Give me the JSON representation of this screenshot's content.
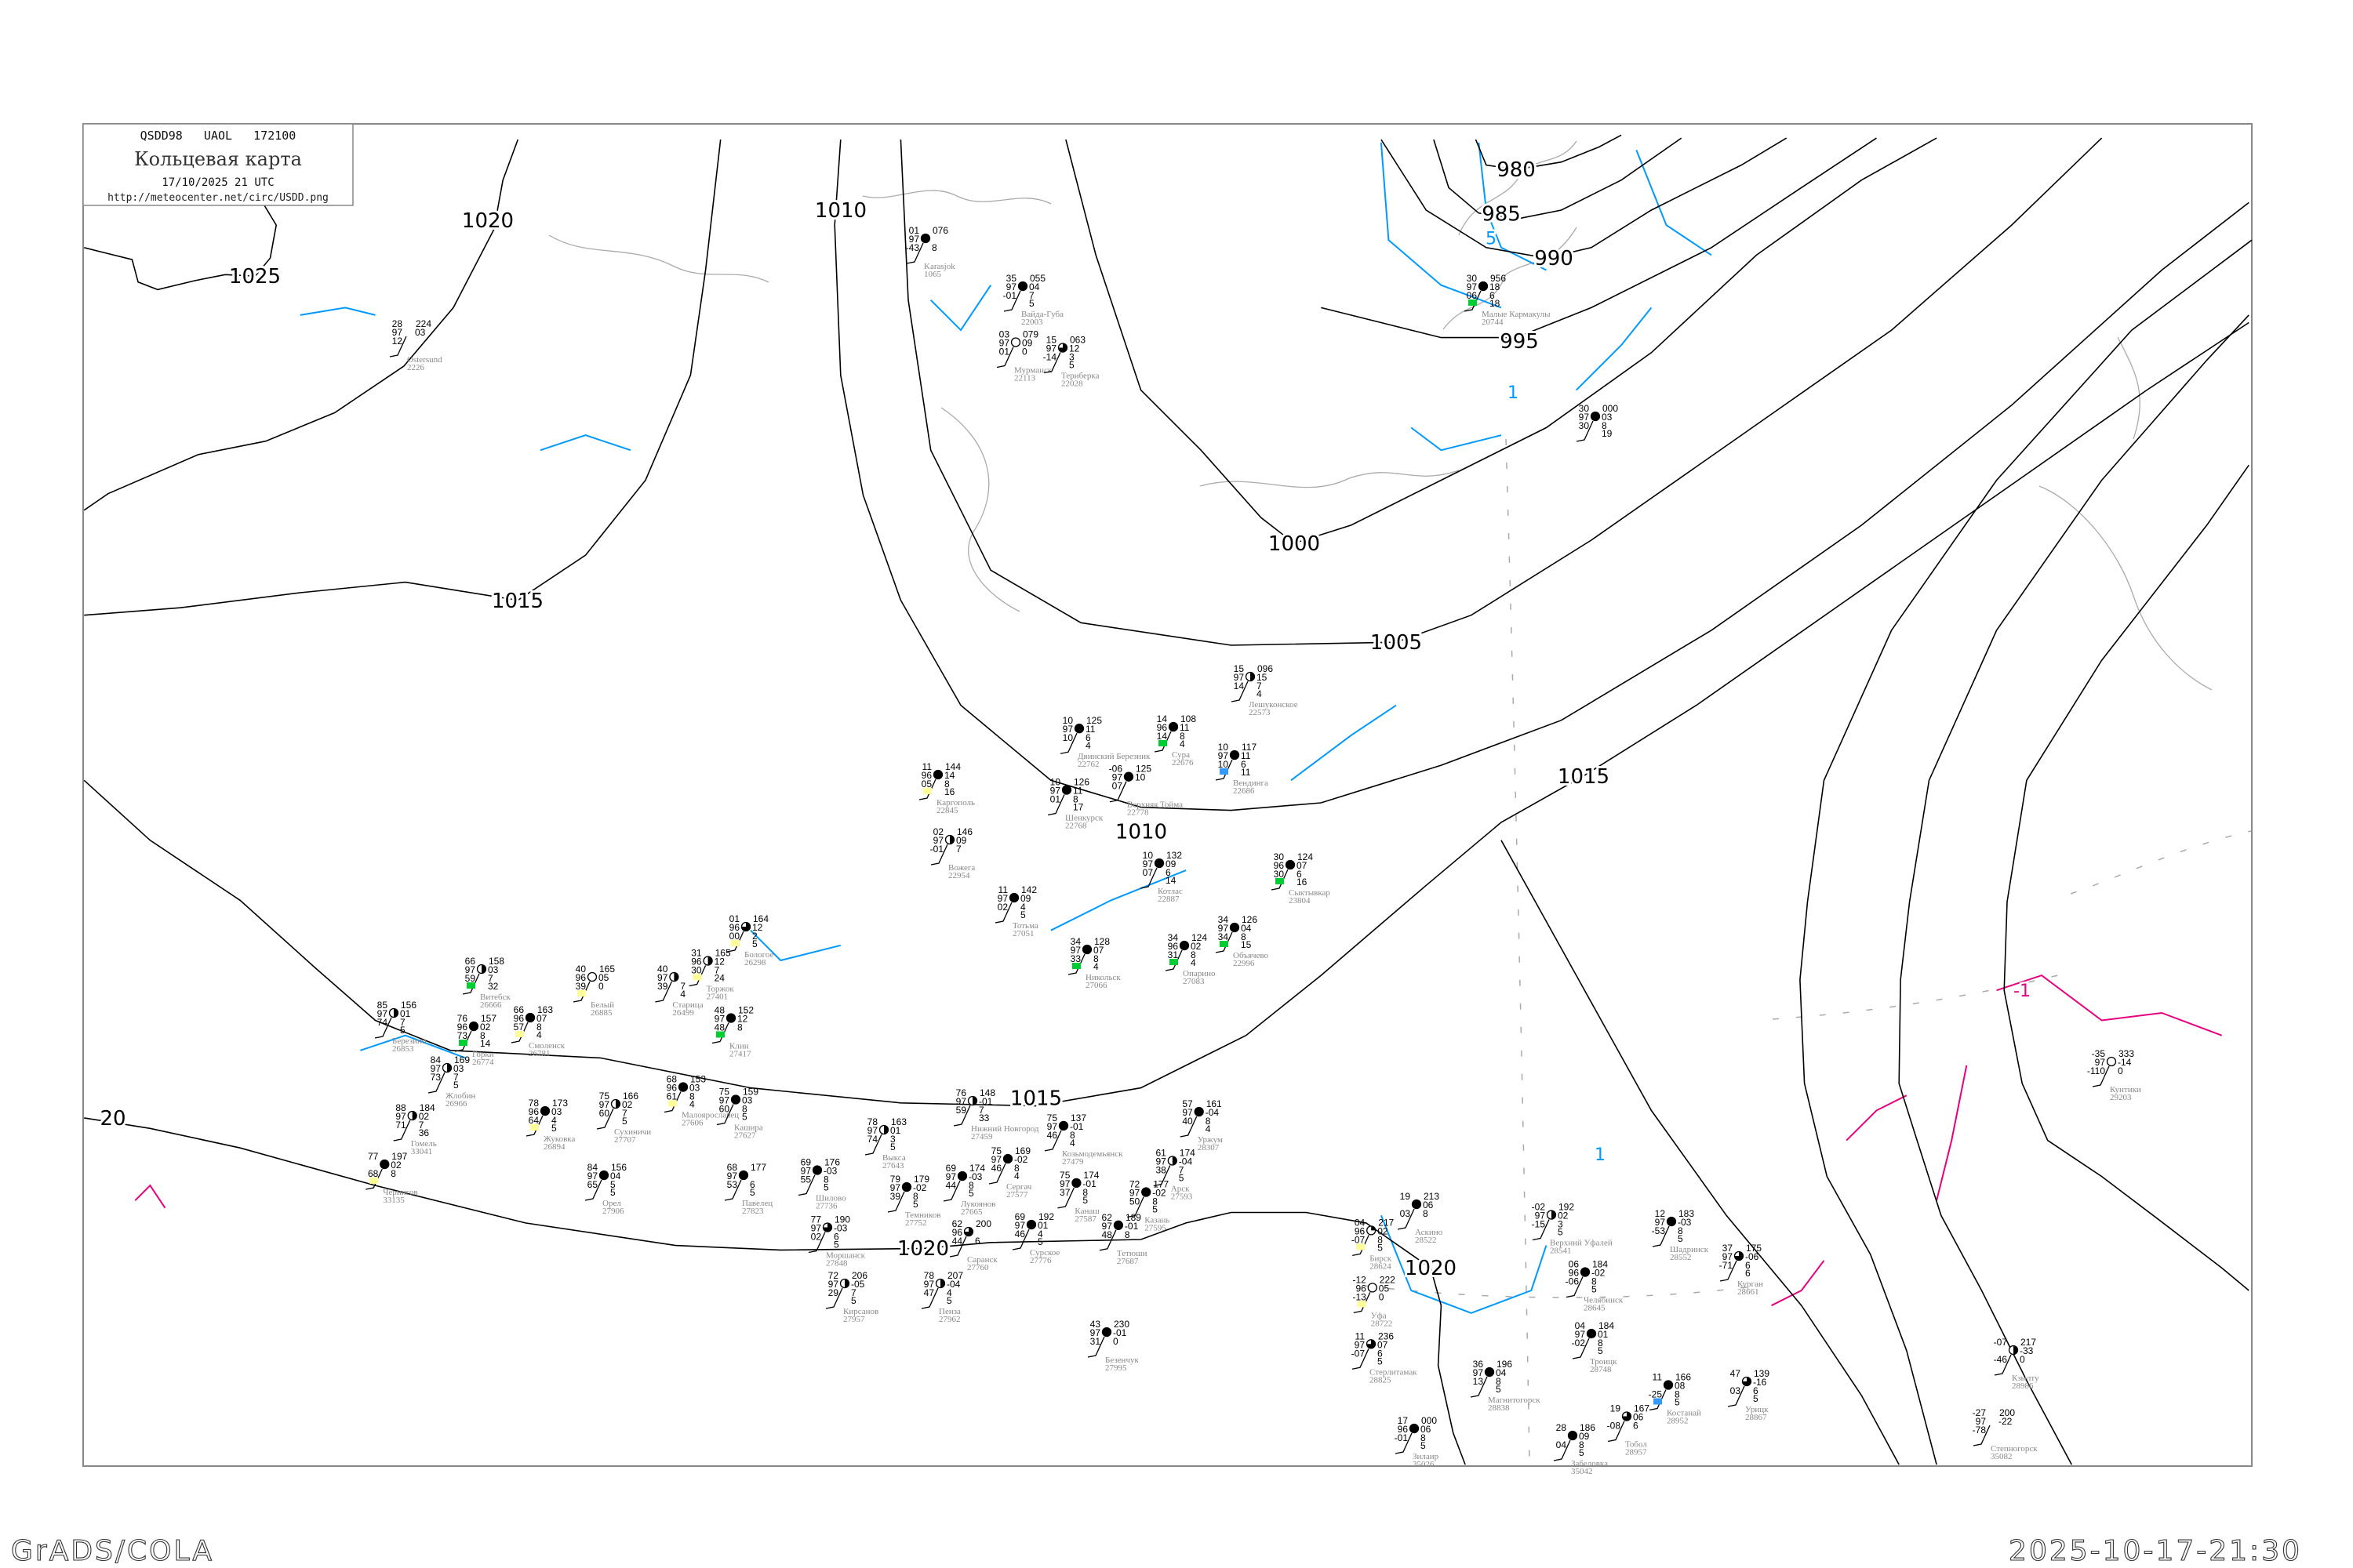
{
  "header": {
    "code_line": "QSDD98   UAOL   172100",
    "title": "Кольцевая карта",
    "datetime": "17/10/2025 21 UTC",
    "url": "http://meteocenter.net/circ/USDD.png"
  },
  "footer": {
    "left": "GrADS/COLA",
    "right": "2025-10-17-21:30"
  },
  "colors": {
    "isobar": "#000000",
    "isotherm_positive": "#0099ff",
    "isotherm_negative": "#e6007e",
    "coast": "#aaaaaa",
    "station_name": "#888888",
    "mark_green": "#00cc33",
    "mark_yellow": "#ffff99",
    "mark_blue": "#3399ff"
  },
  "isobar_labels": [
    "980",
    "985",
    "990",
    "995",
    "1000",
    "1005",
    "1010",
    "1010",
    "1015",
    "1015",
    "1015",
    "1020",
    "1020",
    "1020",
    "20",
    "1025"
  ],
  "isotherm_labels": [
    "5",
    "1",
    "-1",
    "1"
  ],
  "stations": [
    {
      "name": "Нижний Новгород",
      "index": "27459",
      "t": "76",
      "v": "97",
      "td": "59",
      "p": "148",
      "tend": "-01",
      "c1": "7",
      "c2": "33",
      "cover": 0.5
    },
    {
      "name": "Выкса",
      "index": "27643",
      "t": "78",
      "v": "97",
      "td": "74",
      "p": "163",
      "tend": "01",
      "c1": "3",
      "c2": "5",
      "cover": 0.5
    },
    {
      "name": "Козьмодемьянск",
      "index": "27479",
      "t": "75",
      "v": "97",
      "td": "46",
      "p": "137",
      "tend": "-01",
      "c1": "8",
      "c2": "4",
      "cover": 1
    },
    {
      "name": "Сергач",
      "index": "27577",
      "t": "75",
      "v": "97",
      "td": "46",
      "p": "169",
      "tend": "-02",
      "c1": "8",
      "c2": "4",
      "cover": 1
    },
    {
      "name": "Канаш",
      "index": "27587",
      "t": "75",
      "v": "97",
      "td": "37",
      "p": "174",
      "tend": "-01",
      "c1": "8",
      "c2": "5",
      "cover": 1
    },
    {
      "name": "Шилово",
      "index": "27736",
      "t": "69",
      "v": "97",
      "td": "55",
      "p": "176",
      "tend": "-03",
      "c1": "8",
      "c2": "5",
      "cover": 1
    },
    {
      "name": "Темников",
      "index": "27752",
      "t": "79",
      "v": "97",
      "td": "39",
      "p": "179",
      "tend": "-02",
      "c1": "8",
      "c2": "5",
      "cover": 1
    },
    {
      "name": "Лукоянов",
      "index": "27665",
      "t": "69",
      "v": "97",
      "td": "44",
      "p": "174",
      "tend": "-03",
      "c1": "8",
      "c2": "5",
      "cover": 1
    },
    {
      "name": "Моршанск",
      "index": "27848",
      "t": "77",
      "v": "97",
      "td": "02",
      "p": "190",
      "tend": "-03",
      "c1": "6",
      "c2": "5",
      "cover": 0.75
    },
    {
      "name": "Саранск",
      "index": "27760",
      "t": "62",
      "v": "96",
      "td": "44",
      "p": "200",
      "tend": "",
      "c1": "6",
      "c2": "",
      "cover": 0.75
    },
    {
      "name": "Сурское",
      "index": "27776",
      "t": "69",
      "v": "97",
      "td": "46",
      "p": "192",
      "tend": "01",
      "c1": "4",
      "c2": "5",
      "cover": 1
    },
    {
      "name": "Кирсанов",
      "index": "27957",
      "t": "72",
      "v": "97",
      "td": "29",
      "p": "206",
      "tend": "-05",
      "c1": "7",
      "c2": "5",
      "cover": 0.5
    },
    {
      "name": "Пенза",
      "index": "27962",
      "t": "78",
      "v": "97",
      "td": "47",
      "p": "207",
      "tend": "-04",
      "c1": "4",
      "c2": "5",
      "cover": 0.5
    },
    {
      "name": "Казань",
      "index": "27595",
      "t": "72",
      "v": "97",
      "td": "50",
      "p": "177",
      "tend": "-02",
      "c1": "8",
      "c2": "5",
      "cover": 1
    },
    {
      "name": "Арск",
      "index": "27593",
      "t": "61",
      "v": "97",
      "td": "38",
      "p": "174",
      "tend": "-04",
      "c1": "7",
      "c2": "5",
      "cover": 0.5
    },
    {
      "name": "Уржум",
      "index": "28307",
      "t": "57",
      "v": "97",
      "td": "40",
      "p": "161",
      "tend": "-04",
      "c1": "8",
      "c2": "4",
      "cover": 1
    },
    {
      "name": "Тетюши",
      "index": "27687",
      "t": "62",
      "v": "97",
      "td": "48",
      "p": "189",
      "tend": "-01",
      "c1": "8",
      "c2": "",
      "cover": 1
    },
    {
      "name": "Безенчук",
      "index": "27995",
      "t": "43",
      "v": "97",
      "td": "31",
      "p": "230",
      "tend": "-01",
      "c1": "0",
      "c2": "",
      "cover": 1
    },
    {
      "name": "Витебск",
      "index": "26666",
      "t": "66",
      "v": "97",
      "td": "59",
      "p": "158",
      "tend": "03",
      "c1": "7",
      "c2": "32",
      "cover": 0.5,
      "mark": "green"
    },
    {
      "name": "Смоленск",
      "index": "26781",
      "t": "66",
      "v": "96",
      "td": "57",
      "p": "163",
      "tend": "07",
      "c1": "8",
      "c2": "4",
      "cover": 1,
      "mark": "yellow"
    },
    {
      "name": "Горки",
      "index": "26774",
      "t": "76",
      "v": "96",
      "td": "73",
      "p": "157",
      "tend": "02",
      "c1": "8",
      "c2": "14",
      "cover": 1,
      "mark": "green"
    },
    {
      "name": "Березино",
      "index": "26853",
      "t": "85",
      "v": "97",
      "td": "74",
      "p": "156",
      "tend": "01",
      "c1": "7",
      "c2": "5",
      "cover": 0.5
    },
    {
      "name": "Белый",
      "index": "26885",
      "t": "40",
      "v": "96",
      "td": "39",
      "p": "165",
      "tend": "05",
      "c1": "0",
      "c2": "",
      "cover": 0,
      "mark": "yellow"
    },
    {
      "name": "Старица",
      "index": "26499",
      "t": "40",
      "v": "97",
      "td": "39",
      "p": "",
      "tend": "",
      "c1": "7",
      "c2": "4",
      "cover": 0.5
    },
    {
      "name": "Торжок",
      "index": "27401",
      "t": "31",
      "v": "96",
      "td": "30",
      "p": "165",
      "tend": "12",
      "c1": "7",
      "c2": "24",
      "cover": 0.5,
      "mark": "yellow"
    },
    {
      "name": "Клин",
      "index": "27417",
      "t": "48",
      "v": "97",
      "td": "48",
      "p": "152",
      "tend": "12",
      "c1": "8",
      "c2": "",
      "cover": 1,
      "mark": "green"
    },
    {
      "name": "Малоярославец",
      "index": "27606",
      "t": "68",
      "v": "96",
      "td": "61",
      "p": "153",
      "tend": "03",
      "c1": "8",
      "c2": "4",
      "cover": 1,
      "mark": "yellow"
    },
    {
      "name": "Сухиничи",
      "index": "27707",
      "t": "75",
      "v": "97",
      "td": "60",
      "p": "166",
      "tend": "02",
      "c1": "7",
      "c2": "5",
      "cover": 0.5
    },
    {
      "name": "Кашира",
      "index": "27627",
      "t": "75",
      "v": "97",
      "td": "60",
      "p": "159",
      "tend": "03",
      "c1": "8",
      "c2": "5",
      "cover": 1
    },
    {
      "name": "Жуковка",
      "index": "26894",
      "t": "78",
      "v": "96",
      "td": "64",
      "p": "173",
      "tend": "03",
      "c1": "4",
      "c2": "5",
      "cover": 1,
      "mark": "yellow"
    },
    {
      "name": "Жлобин",
      "index": "26966",
      "t": "84",
      "v": "97",
      "td": "73",
      "p": "169",
      "tend": "03",
      "c1": "7",
      "c2": "5",
      "cover": 0.5
    },
    {
      "name": "Гомель",
      "index": "33041",
      "t": "88",
      "v": "97",
      "td": "71",
      "p": "184",
      "tend": "02",
      "c1": "7",
      "c2": "36",
      "cover": 0.5
    },
    {
      "name": "Чернигов",
      "index": "33135",
      "t": "77",
      "v": "",
      "td": "68",
      "p": "197",
      "tend": "02",
      "c1": "8",
      "c2": "",
      "cover": 1,
      "mark": "yellow"
    },
    {
      "name": "Орел",
      "index": "27906",
      "t": "84",
      "v": "97",
      "td": "65",
      "p": "156",
      "tend": "04",
      "c1": "5",
      "c2": "5",
      "cover": 1
    },
    {
      "name": "Павелец",
      "index": "27823",
      "t": "68",
      "v": "97",
      "td": "53",
      "p": "177",
      "tend": "",
      "c1": "6",
      "c2": "5",
      "cover": 1
    },
    {
      "name": "Бологое",
      "index": "26298",
      "t": "01",
      "v": "96",
      "td": "00",
      "p": "164",
      "tend": "12",
      "c1": "2",
      "c2": "5",
      "cover": 0.75,
      "mark": "yellow"
    },
    {
      "name": "Двинский Березник",
      "index": "22762",
      "t": "10",
      "v": "97",
      "td": "10",
      "p": "125",
      "tend": "11",
      "c1": "6",
      "c2": "4",
      "cover": 1
    },
    {
      "name": "Шенкурск",
      "index": "22768",
      "t": "10",
      "v": "97",
      "td": "01",
      "p": "126",
      "tend": "11",
      "c1": "8",
      "c2": "17",
      "cover": 1
    },
    {
      "name": "Верхняя Тойма",
      "index": "22778",
      "t": "-06",
      "v": "97",
      "td": "07",
      "p": "125",
      "tend": "10",
      "c1": "",
      "c2": "",
      "cover": 1
    },
    {
      "name": "Каргополь",
      "index": "22845",
      "t": "11",
      "v": "96",
      "td": "05",
      "p": "144",
      "tend": "14",
      "c1": "8",
      "c2": "16",
      "cover": 1,
      "mark": "yellow"
    },
    {
      "name": "Котлас",
      "index": "22887",
      "t": "10",
      "v": "97",
      "td": "07",
      "p": "132",
      "tend": "09",
      "c1": "6",
      "c2": "14",
      "cover": 1
    },
    {
      "name": "Тотьма",
      "index": "27051",
      "t": "11",
      "v": "97",
      "td": "02",
      "p": "142",
      "tend": "09",
      "c1": "4",
      "c2": "5",
      "cover": 1
    },
    {
      "name": "Никольск",
      "index": "27066",
      "t": "34",
      "v": "97",
      "td": "33",
      "p": "128",
      "tend": "07",
      "c1": "8",
      "c2": "4",
      "cover": 1,
      "mark": "green"
    },
    {
      "name": "Опарино",
      "index": "27083",
      "t": "34",
      "v": "96",
      "td": "31",
      "p": "124",
      "tend": "02",
      "c1": "8",
      "c2": "4",
      "cover": 1,
      "mark": "green"
    },
    {
      "name": "Объячево",
      "index": "22996",
      "t": "34",
      "v": "97",
      "td": "34",
      "p": "126",
      "tend": "04",
      "c1": "8",
      "c2": "15",
      "cover": 1,
      "mark": "green"
    },
    {
      "name": "Сыктывкар",
      "index": "23804",
      "t": "30",
      "v": "96",
      "td": "30",
      "p": "124",
      "tend": "07",
      "c1": "6",
      "c2": "16",
      "cover": 1,
      "mark": "green"
    },
    {
      "name": "Вендинга",
      "index": "22686",
      "t": "10",
      "v": "97",
      "td": "10",
      "p": "117",
      "tend": "11",
      "c1": "6",
      "c2": "11",
      "cover": 1,
      "mark": "blue"
    },
    {
      "name": "Сура",
      "index": "22676",
      "t": "14",
      "v": "96",
      "td": "14",
      "p": "108",
      "tend": "11",
      "c1": "8",
      "c2": "4",
      "cover": 1,
      "mark": "green"
    },
    {
      "name": "Лешуконское",
      "index": "22573",
      "t": "15",
      "v": "97",
      "td": "14",
      "p": "096",
      "tend": "15",
      "c1": "7",
      "c2": "4",
      "cover": 0.5
    },
    {
      "name": "Вожега",
      "index": "22954",
      "t": "02",
      "v": "97",
      "td": "-01",
      "p": "146",
      "tend": "09",
      "c1": "7",
      "c2": "",
      "cover": 0.5
    },
    {
      "name": "Челябинск",
      "index": "28645",
      "t": "06",
      "v": "96",
      "td": "-06",
      "p": "184",
      "tend": "-02",
      "c1": "8",
      "c2": "5",
      "cover": 1
    },
    {
      "name": "Троицк",
      "index": "28748",
      "t": "04",
      "v": "97",
      "td": "-02",
      "p": "184",
      "tend": "01",
      "c1": "8",
      "c2": "5",
      "cover": 1
    },
    {
      "name": "Магнитогорск",
      "index": "28838",
      "t": "36",
      "v": "97",
      "td": "13",
      "p": "196",
      "tend": "04",
      "c1": "8",
      "c2": "5",
      "cover": 1
    },
    {
      "name": "Шадринск",
      "index": "28552",
      "t": "12",
      "v": "97",
      "td": "-53",
      "p": "183",
      "tend": "-03",
      "c1": "8",
      "c2": "5",
      "cover": 1
    },
    {
      "name": "Курган",
      "index": "28661",
      "t": "37",
      "v": "97",
      "td": "-71",
      "p": "175",
      "tend": "-06",
      "c1": "6",
      "c2": "6",
      "cover": 0.75
    },
    {
      "name": "Верхний Уфалей",
      "index": "28541",
      "t": "-02",
      "v": "97",
      "td": "-15",
      "p": "192",
      "tend": "02",
      "c1": "3",
      "c2": "5",
      "cover": 0.5
    },
    {
      "name": "Уфа",
      "index": "28722",
      "t": "-12",
      "v": "96",
      "td": "-13",
      "p": "222",
      "tend": "05",
      "c1": "0",
      "c2": "",
      "cover": 0,
      "mark": "yellow"
    },
    {
      "name": "Бирск",
      "index": "28624",
      "t": "04",
      "v": "96",
      "td": "-07",
      "p": "217",
      "tend": "02",
      "c1": "8",
      "c2": "5",
      "cover": 0.25,
      "mark": "yellow"
    },
    {
      "name": "Стерлитамак",
      "index": "28825",
      "t": "11",
      "v": "97",
      "td": "-07",
      "p": "236",
      "tend": "07",
      "c1": "6",
      "c2": "5",
      "cover": 0.75
    },
    {
      "name": "Зилаир",
      "index": "35026",
      "t": "17",
      "v": "96",
      "td": "-01",
      "p": "000",
      "tend": "06",
      "c1": "8",
      "c2": "5",
      "cover": 1
    },
    {
      "name": "Забеловка",
      "index": "35042",
      "t": "28",
      "v": "",
      "td": "04",
      "p": "186",
      "tend": "09",
      "c1": "8",
      "c2": "5",
      "cover": 1
    },
    {
      "name": "Костанай",
      "index": "28952",
      "t": "11",
      "v": "",
      "td": "-25",
      "p": "166",
      "tend": "08",
      "c1": "8",
      "c2": "5",
      "cover": 1,
      "mark": "blue"
    },
    {
      "name": "Урицк",
      "index": "28867",
      "t": "47",
      "v": "",
      "td": "03",
      "p": "139",
      "tend": "-16",
      "c1": "6",
      "c2": "5",
      "cover": 0.75
    },
    {
      "name": "Тобол",
      "index": "28957",
      "t": "19",
      "v": "",
      "td": "-08",
      "p": "167",
      "tend": "06",
      "c1": "6",
      "c2": "",
      "cover": 0.75
    },
    {
      "name": "Аскино",
      "index": "28522",
      "t": "19",
      "v": "",
      "td": "03",
      "p": "213",
      "tend": "06",
      "c1": "8",
      "c2": "",
      "cover": 1
    },
    {
      "name": "Мурманск",
      "index": "22113",
      "t": "03",
      "v": "97",
      "td": "01",
      "p": "079",
      "tend": "09",
      "c1": "0",
      "c2": "",
      "cover": 0
    },
    {
      "name": "Териберка",
      "index": "22028",
      "t": "15",
      "v": "97",
      "td": "-14",
      "p": "063",
      "tend": "12",
      "c1": "3",
      "c2": "5",
      "cover": 0.75
    },
    {
      "name": "Вайда-Губа",
      "index": "22003",
      "t": "35",
      "v": "97",
      "td": "-01",
      "p": "055",
      "tend": "04",
      "c1": "7",
      "c2": "5",
      "cover": 1
    },
    {
      "name": "Karasjok",
      "index": "1065",
      "t": "01",
      "v": "97",
      "td": "-43",
      "p": "076",
      "tend": "",
      "c1": "8",
      "c2": "",
      "cover": 1
    },
    {
      "name": "Малые Кармакулы",
      "index": "20744",
      "t": "30",
      "v": "97",
      "td": "06",
      "p": "956",
      "tend": "18",
      "c1": "6",
      "c2": "18",
      "cover": 1,
      "mark": "green"
    },
    {
      "name": "",
      "index": "",
      "t": "30",
      "v": "97",
      "td": "30",
      "p": "000",
      "tend": "03",
      "c1": "8",
      "c2": "19",
      "cover": 1
    },
    {
      "name": "Кунтики",
      "index": "29203",
      "t": "-35",
      "v": "97",
      "td": "-110",
      "p": "333",
      "tend": "-14",
      "c1": "0",
      "c2": "",
      "cover": 0
    },
    {
      "name": "Кзылту",
      "index": "28986",
      "t": "-07",
      "v": "",
      "td": "-46",
      "p": "217",
      "tend": "-33",
      "c1": "0",
      "c2": "",
      "cover": 0.5
    },
    {
      "name": "Степногорск",
      "index": "35082",
      "t": "-27",
      "v": "97",
      "td": "-78",
      "p": "200",
      "tend": "-22",
      "c1": "",
      "c2": "",
      "cover": -1
    },
    {
      "name": "Ostersund",
      "index": "2226",
      "t": "28",
      "v": "97",
      "td": "12",
      "p": "224",
      "tend": "03",
      "c1": "",
      "c2": "",
      "cover": -1
    }
  ]
}
